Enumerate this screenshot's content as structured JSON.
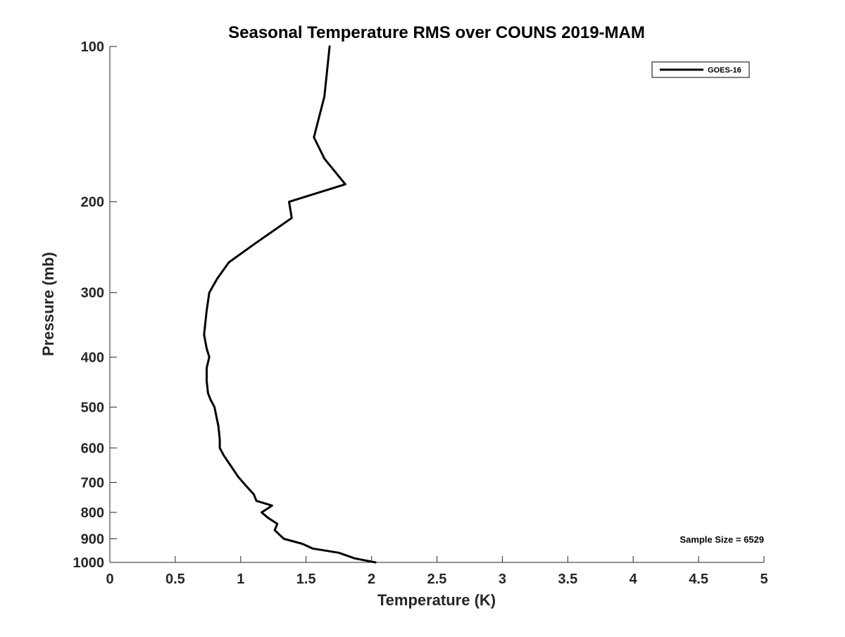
{
  "chart_data": {
    "type": "line",
    "title": "Seasonal Temperature RMS over COUNS  2019-MAM",
    "xlabel": "Temperature (K)",
    "ylabel": "Pressure (mb)",
    "xlim": [
      0,
      5
    ],
    "ylim": [
      100,
      1000
    ],
    "y_scale": "log",
    "y_reversed": true,
    "x_ticks": [
      0,
      0.5,
      1,
      1.5,
      2,
      2.5,
      3,
      3.5,
      4,
      4.5,
      5
    ],
    "x_tick_labels": [
      "0",
      "0.5",
      "1",
      "1.5",
      "2",
      "2.5",
      "3",
      "3.5",
      "4",
      "4.5",
      "5"
    ],
    "y_ticks": [
      100,
      200,
      300,
      400,
      500,
      600,
      700,
      800,
      900,
      1000
    ],
    "y_tick_labels": [
      "100",
      "200",
      "300",
      "400",
      "500",
      "600",
      "700",
      "800",
      "900",
      "1000"
    ],
    "grid": false,
    "legend": {
      "position": "top-right",
      "entries": [
        "GOES-16"
      ]
    },
    "annotation": "Sample Size = 6529",
    "series": [
      {
        "name": "GOES-16",
        "color": "#000000",
        "points": [
          [
            1.68,
            100
          ],
          [
            1.64,
            125
          ],
          [
            1.56,
            150
          ],
          [
            1.64,
            165
          ],
          [
            1.8,
            185
          ],
          [
            1.37,
            200
          ],
          [
            1.39,
            215
          ],
          [
            1.12,
            240
          ],
          [
            0.91,
            262
          ],
          [
            0.82,
            282
          ],
          [
            0.76,
            300
          ],
          [
            0.74,
            325
          ],
          [
            0.72,
            362
          ],
          [
            0.74,
            385
          ],
          [
            0.76,
            400
          ],
          [
            0.74,
            420
          ],
          [
            0.74,
            445
          ],
          [
            0.75,
            470
          ],
          [
            0.77,
            484
          ],
          [
            0.8,
            500
          ],
          [
            0.83,
            545
          ],
          [
            0.84,
            578
          ],
          [
            0.84,
            600
          ],
          [
            0.87,
            620
          ],
          [
            0.91,
            642
          ],
          [
            0.98,
            682
          ],
          [
            1.04,
            710
          ],
          [
            1.1,
            738
          ],
          [
            1.12,
            760
          ],
          [
            1.24,
            776
          ],
          [
            1.16,
            800
          ],
          [
            1.21,
            820
          ],
          [
            1.28,
            842
          ],
          [
            1.26,
            866
          ],
          [
            1.33,
            900
          ],
          [
            1.47,
            920
          ],
          [
            1.55,
            940
          ],
          [
            1.75,
            958
          ],
          [
            1.87,
            982
          ],
          [
            2.03,
            1000
          ]
        ]
      }
    ]
  }
}
